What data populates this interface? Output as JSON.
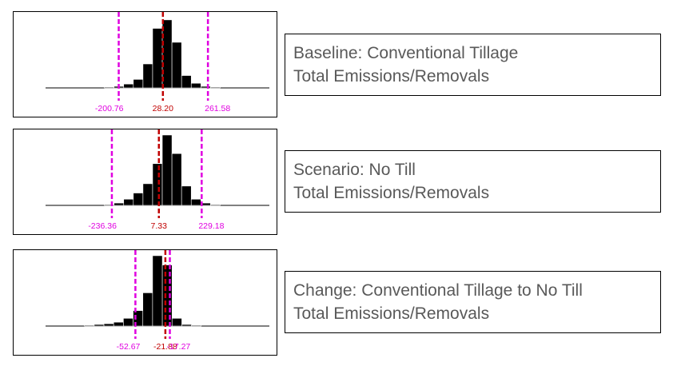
{
  "colors": {
    "bar": "#000000",
    "mean": "#c00000",
    "interval": "#e000e0",
    "caption_text": "#595959"
  },
  "chart_data": [
    {
      "type": "bar",
      "title": "",
      "caption": {
        "line1": "Baseline: Conventional Tillage",
        "line2": "Total Emissions/Removals"
      },
      "bin_centers": [
        -250,
        -200,
        -150,
        -100,
        -50,
        0,
        50,
        100,
        150,
        200,
        250,
        300,
        350
      ],
      "values": [
        1,
        2,
        5,
        11,
        31,
        77,
        88,
        59,
        16,
        6,
        2,
        1,
        0
      ],
      "ymax": 92,
      "xlim": [
        -580,
        580
      ],
      "mean": {
        "value": 28.2,
        "label": "28.20"
      },
      "lower": {
        "value": -200.76,
        "label": "-200.76"
      },
      "upper": {
        "value": 261.58,
        "label": "261.58"
      }
    },
    {
      "type": "bar",
      "title": "",
      "caption": {
        "line1": "Scenario: No Till",
        "line2": "Total Emissions/Removals"
      },
      "bin_centers": [
        -300,
        -250,
        -200,
        -150,
        -100,
        -50,
        0,
        50,
        100,
        150,
        200,
        250,
        300,
        350
      ],
      "values": [
        0,
        1,
        3,
        8,
        16,
        28,
        54,
        91,
        67,
        25,
        8,
        3,
        1,
        0
      ],
      "ymax": 92,
      "xlim": [
        -580,
        580
      ],
      "mean": {
        "value": 7.33,
        "label": "7.33"
      },
      "lower": {
        "value": -236.36,
        "label": "-236.36"
      },
      "upper": {
        "value": 229.18,
        "label": "229.18"
      }
    },
    {
      "type": "bar",
      "title": "",
      "caption": {
        "line1": "Change: Conventional Tillage to No Till",
        "line2": "Total Emissions/Removals"
      },
      "bin_centers": [
        -110,
        -100,
        -90,
        -80,
        -70,
        -60,
        -50,
        -40,
        -30,
        -20,
        -10,
        0,
        10,
        20
      ],
      "values": [
        0,
        1,
        2,
        3,
        5,
        10,
        20,
        43,
        91,
        79,
        10,
        2,
        1,
        0
      ],
      "ymax": 92,
      "xlim": [
        -145,
        85
      ],
      "mean": {
        "value": -21.88,
        "label": "-21.88"
      },
      "lower": {
        "value": -52.67,
        "label": "-52.67"
      },
      "upper": {
        "value": -17.27,
        "label": "-17.27"
      }
    }
  ]
}
